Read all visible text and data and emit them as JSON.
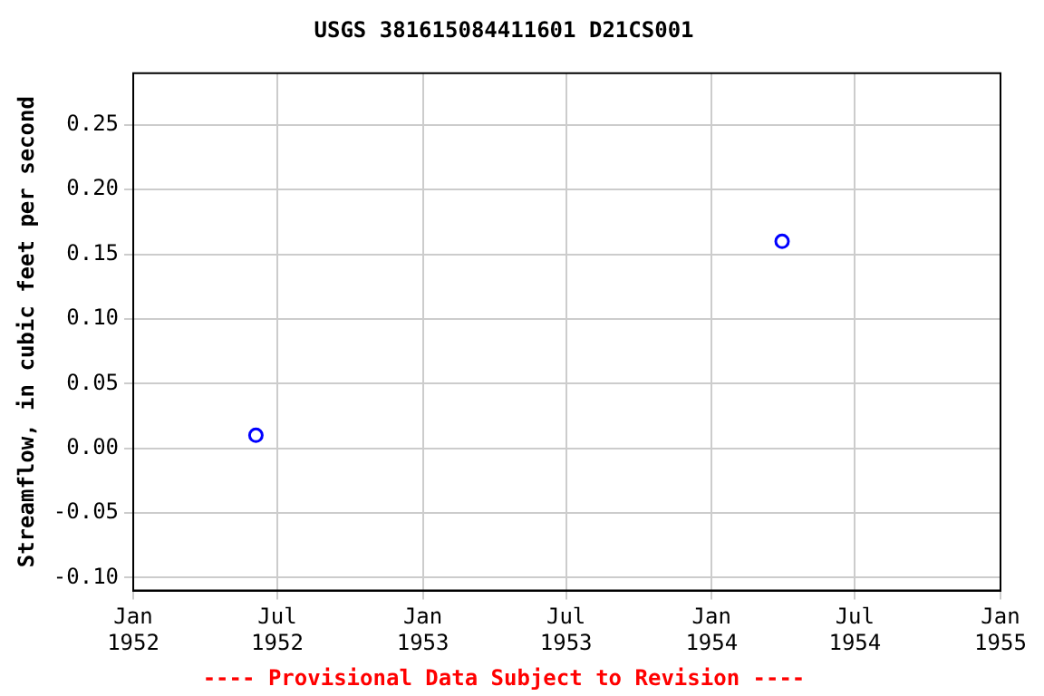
{
  "chart_data": {
    "type": "scatter",
    "title": "USGS 381615084411601 D21CS001",
    "ylabel": "Streamflow, in cubic feet per second",
    "x": [
      "1952-06-04",
      "1954-03-31"
    ],
    "series": [
      {
        "color": "#0000ff",
        "values": [
          0.01,
          0.16
        ]
      }
    ],
    "xlim": [
      "1952-01-01",
      "1955-01-01"
    ],
    "xticks": [
      {
        "value": "1952-01-01",
        "label": "Jan 1952"
      },
      {
        "value": "1952-07-01",
        "label": "Jul 1952"
      },
      {
        "value": "1953-01-01",
        "label": "Jan 1953"
      },
      {
        "value": "1953-07-01",
        "label": "Jul 1953"
      },
      {
        "value": "1954-01-01",
        "label": "Jan 1954"
      },
      {
        "value": "1954-07-01",
        "label": "Jul 1954"
      },
      {
        "value": "1955-01-01",
        "label": "Jan 1955"
      }
    ],
    "ylim": [
      -0.11,
      0.29
    ],
    "yticks": [
      {
        "value": -0.1,
        "label": "-0.10"
      },
      {
        "value": -0.05,
        "label": "-0.05"
      },
      {
        "value": 0,
        "label": "0.00"
      },
      {
        "value": 0.05,
        "label": "0.05"
      },
      {
        "value": 0.1,
        "label": "0.10"
      },
      {
        "value": 0.15,
        "label": "0.15"
      },
      {
        "value": 0.2,
        "label": "0.20"
      },
      {
        "value": 0.25,
        "label": "0.25"
      }
    ],
    "grid": true,
    "marker": "circle",
    "legend": false,
    "annotations": [
      "---- Provisional Data Subject to Revision ----"
    ]
  }
}
